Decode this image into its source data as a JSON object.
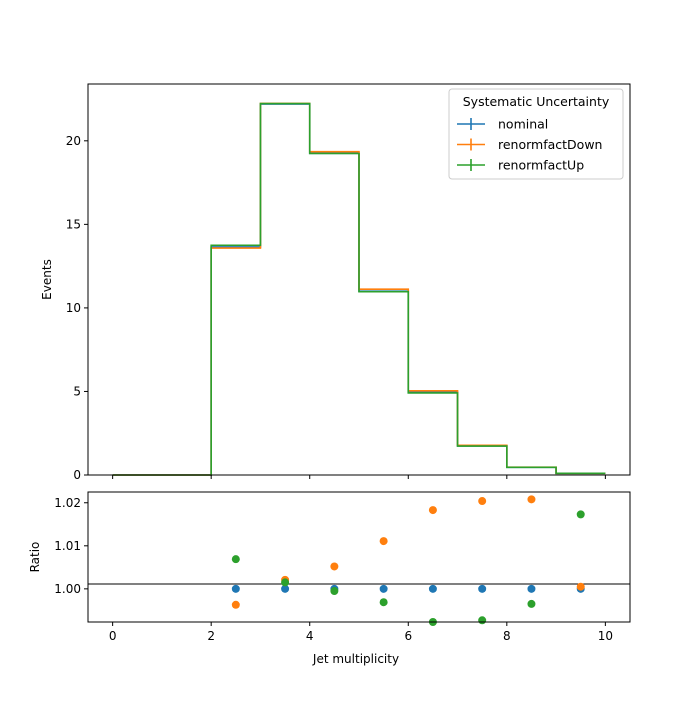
{
  "chart_data": [
    {
      "type": "histogram",
      "ylabel": "Events",
      "xlim": [
        -0.5,
        10.5
      ],
      "ylim": [
        0,
        23.4
      ],
      "yticks": [
        0,
        5,
        10,
        15,
        20
      ],
      "bin_edges": [
        0,
        1,
        2,
        3,
        4,
        5,
        6,
        7,
        8,
        9,
        10
      ],
      "legend": {
        "title": "Systematic Uncertainty",
        "placement": "top-right"
      },
      "series": [
        {
          "name": "nominal",
          "color": "#1f77b4",
          "values": [
            0,
            0,
            13.65,
            22.2,
            19.25,
            11.0,
            4.95,
            1.74,
            0.46,
            0.1
          ]
        },
        {
          "name": "renormfactDown",
          "color": "#ff7f0e",
          "values": [
            0,
            0,
            13.58,
            22.24,
            19.35,
            11.12,
            5.04,
            1.78,
            0.47,
            0.1
          ]
        },
        {
          "name": "renormfactUp",
          "color": "#2ca02c",
          "values": [
            0,
            0,
            13.75,
            22.23,
            19.24,
            10.97,
            4.91,
            1.73,
            0.46,
            0.1
          ]
        }
      ]
    },
    {
      "type": "scatter",
      "xlabel": "Jet multiplicity",
      "ylabel": "Ratio",
      "xlim": [
        -0.5,
        10.5
      ],
      "ylim": [
        0.9923,
        1.0225
      ],
      "xticks": [
        0,
        2,
        4,
        6,
        8,
        10
      ],
      "yticks": [
        1.0,
        1.01,
        1.02
      ],
      "ytick_labels": [
        "1.00",
        "1.01",
        "1.02"
      ],
      "reference_line": 1.0,
      "series": [
        {
          "name": "nominal",
          "color": "#1f77b4",
          "x": [
            2.5,
            3.5,
            4.5,
            5.5,
            6.5,
            7.5,
            8.5,
            9.5
          ],
          "y": [
            1.0,
            1.0,
            1.0,
            1.0,
            1.0,
            1.0,
            1.0,
            1.0
          ]
        },
        {
          "name": "renormfactDown",
          "color": "#ff7f0e",
          "x": [
            2.5,
            3.5,
            4.5,
            5.5,
            6.5,
            7.5,
            8.5,
            9.5
          ],
          "y": [
            0.9963,
            1.0021,
            1.0052,
            1.0111,
            1.0183,
            1.0204,
            1.0208,
            1.0005
          ]
        },
        {
          "name": "renormfactUp",
          "color": "#2ca02c",
          "x": [
            2.5,
            3.5,
            4.5,
            5.5,
            6.5,
            7.5,
            8.5,
            9.5
          ],
          "y": [
            1.0069,
            1.0015,
            0.9995,
            0.9969,
            0.9923,
            0.9927,
            0.9965,
            1.0173
          ]
        }
      ]
    }
  ]
}
